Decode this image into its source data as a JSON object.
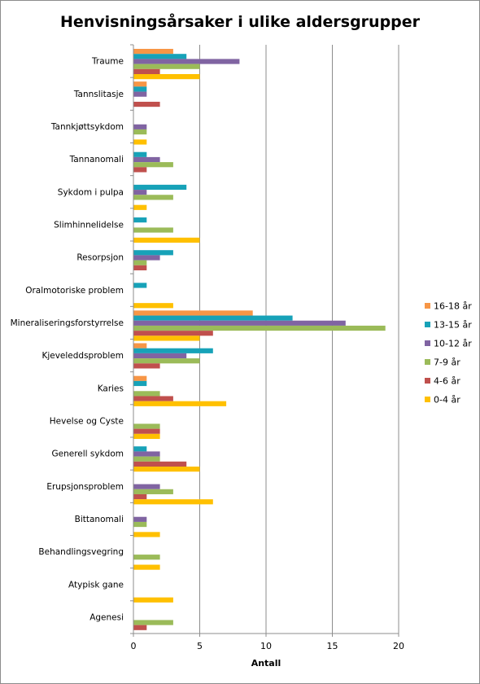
{
  "chart_data": {
    "type": "bar",
    "orientation": "horizontal",
    "title": "Henvisningsårsaker i ulike aldersgrupper",
    "xlabel": "Antall",
    "ylabel": "",
    "xlim": [
      0,
      20
    ],
    "xticks": [
      "0",
      "5",
      "10",
      "15",
      "20"
    ],
    "grid": "vertical",
    "legend_position": "right",
    "categories": [
      "Traume",
      "Tannslitasje",
      "Tannkjøttsykdom",
      "Tannanomali",
      "Sykdom i pulpa",
      "Slimhinnelidelse",
      "Resorpsjon",
      "Oralmotoriske problem",
      "Mineraliseringsforstyrrelse",
      "Kjeveleddsproblem",
      "Karies",
      "Hevelse og Cyste",
      "Generell sykdom",
      "Erupsjonsproblem",
      "Bittanomali",
      "Behandlingsvegring",
      "Atypisk gane",
      "Agenesi"
    ],
    "series": [
      {
        "name": "16-18 år",
        "color": "#f79646",
        "values": [
          3,
          1,
          0,
          0,
          0,
          0,
          0,
          0,
          9,
          1,
          1,
          0,
          0,
          0,
          0,
          0,
          0,
          0
        ]
      },
      {
        "name": "13-15 år",
        "color": "#17a2b8",
        "values": [
          4,
          1,
          0,
          1,
          4,
          1,
          3,
          1,
          12,
          6,
          1,
          0,
          1,
          0,
          0,
          0,
          0,
          0
        ]
      },
      {
        "name": "10-12 år",
        "color": "#8064a2",
        "values": [
          8,
          1,
          1,
          2,
          1,
          0,
          2,
          0,
          16,
          4,
          0,
          0,
          2,
          2,
          1,
          0,
          0,
          0
        ]
      },
      {
        "name": "7-9 år",
        "color": "#9bbb59",
        "values": [
          5,
          0,
          1,
          3,
          3,
          3,
          1,
          0,
          19,
          5,
          2,
          2,
          2,
          3,
          1,
          2,
          0,
          3
        ]
      },
      {
        "name": "4-6 år",
        "color": "#c0504d",
        "values": [
          2,
          2,
          0,
          1,
          0,
          0,
          1,
          0,
          6,
          2,
          3,
          2,
          4,
          1,
          0,
          0,
          0,
          1
        ]
      },
      {
        "name": "0-4 år",
        "color": "#ffc000",
        "values": [
          5,
          0,
          1,
          0,
          1,
          5,
          0,
          3,
          5,
          0,
          7,
          2,
          5,
          6,
          2,
          2,
          3,
          0
        ]
      }
    ],
    "legend_order": [
      "16-18 år",
      "13-15 år",
      "10-12 år",
      "7-9 år",
      "4-6 år",
      "0-4 år"
    ]
  }
}
